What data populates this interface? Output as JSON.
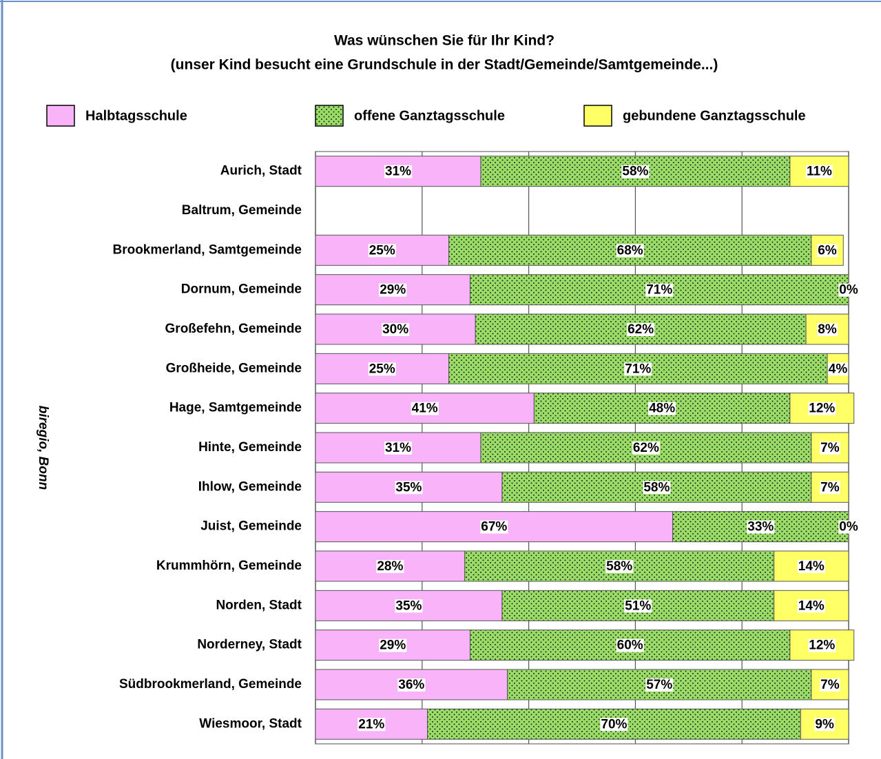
{
  "chart_data": {
    "type": "stacked_bar_horizontal",
    "title": "Was wünschen Sie für Ihr Kind?",
    "subtitle": "(unser Kind besucht eine Grundschule in der Stadt/Gemeinde/Samtgemeinde...)",
    "source": "biregio, Bonn",
    "categories": [
      "Aurich, Stadt",
      "Baltrum, Gemeinde",
      "Brookmerland, Samtgemeinde",
      "Dornum, Gemeinde",
      "Großefehn, Gemeinde",
      "Großheide, Gemeinde",
      "Hage, Samtgemeinde",
      "Hinte, Gemeinde",
      "Ihlow, Gemeinde",
      "Juist, Gemeinde",
      "Krummhörn, Gemeinde",
      "Norden, Stadt",
      "Norderney, Stadt",
      "Südbrookmerland, Gemeinde",
      "Wiesmoor, Stadt"
    ],
    "series": [
      {
        "name": "Halbtagsschule",
        "color": "#f9b3f9",
        "pattern": false,
        "values": [
          31,
          null,
          25,
          29,
          30,
          25,
          41,
          31,
          35,
          67,
          28,
          35,
          29,
          36,
          21
        ],
        "value_labels": [
          "31%",
          null,
          "25%",
          "29%",
          "30%",
          "25%",
          "41%",
          "31%",
          "35%",
          "67%",
          "28%",
          "35%",
          "29%",
          "36%",
          "21%"
        ]
      },
      {
        "name": "offene Ganztagsschule",
        "color": "#99dd66",
        "pattern": true,
        "values": [
          58,
          null,
          68,
          71,
          62,
          71,
          48,
          62,
          58,
          33,
          58,
          51,
          60,
          57,
          70
        ],
        "value_labels": [
          "58%",
          null,
          "68%",
          "71%",
          "62%",
          "71%",
          "48%",
          "62%",
          "58%",
          "33%",
          "58%",
          "51%",
          "60%",
          "57%",
          "70%"
        ]
      },
      {
        "name": "gebundene Ganztagsschule",
        "color": "#ffff66",
        "pattern": false,
        "values": [
          11,
          null,
          6,
          0,
          8,
          4,
          12,
          7,
          7,
          0,
          14,
          14,
          12,
          7,
          9
        ],
        "value_labels": [
          "11%",
          null,
          "6%",
          "0%",
          "8%",
          "4%",
          "12%",
          "7%",
          "7%",
          "0%",
          "14%",
          "14%",
          "12%",
          "7%",
          "9%"
        ]
      }
    ],
    "xlim": [
      0,
      100
    ],
    "xticks": [
      0,
      20,
      40,
      60,
      80,
      100
    ],
    "grid": true,
    "legend": "top"
  }
}
